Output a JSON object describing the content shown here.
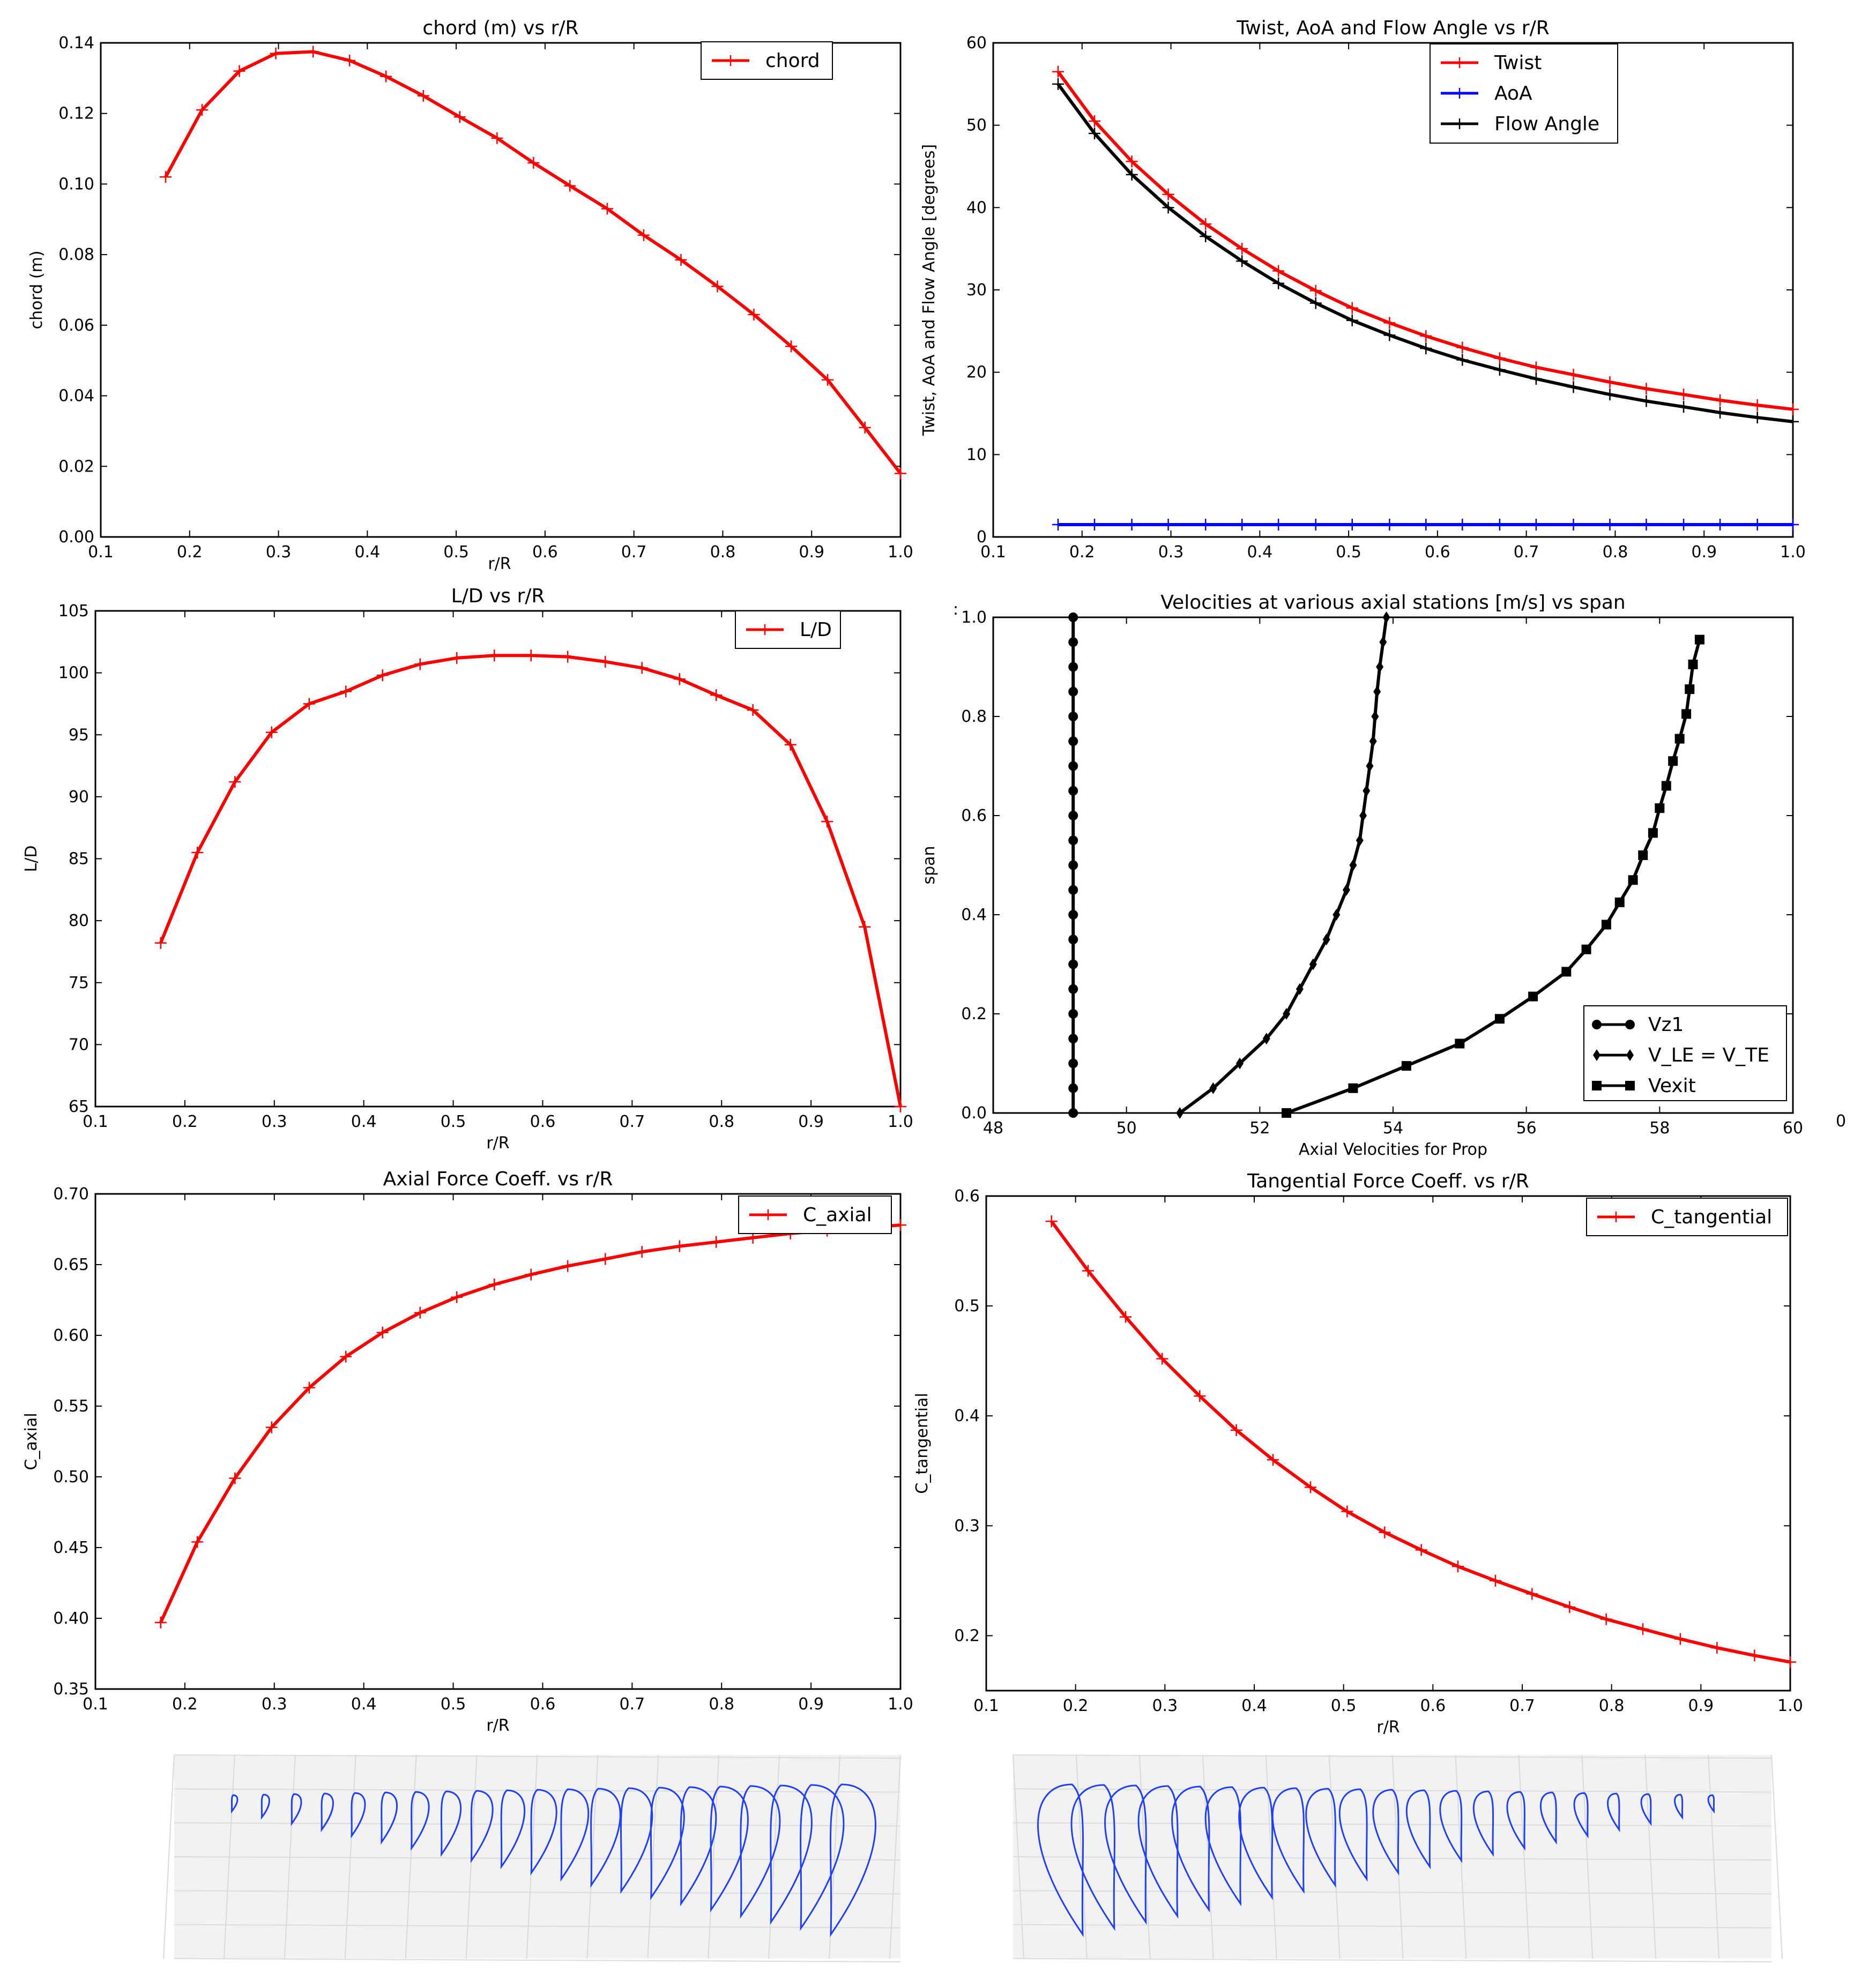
{
  "chart_data": [
    {
      "id": "chord",
      "type": "line",
      "title": "chord (m) vs r/R",
      "xlabel": "r/R",
      "ylabel": "chord (m)",
      "xlim": [
        0.1,
        1.0
      ],
      "ylim": [
        0.0,
        0.14
      ],
      "xticks": [
        "0.1",
        "0.2",
        "0.3",
        "0.4",
        "0.5",
        "0.6",
        "0.7",
        "0.8",
        "0.9",
        "1.0"
      ],
      "yticks": [
        "0.00",
        "0.02",
        "0.04",
        "0.06",
        "0.08",
        "0.10",
        "0.12",
        "0.14"
      ],
      "legend_position": "top-right",
      "series": [
        {
          "name": "chord",
          "color": "#ff0000",
          "marker": "plus",
          "x": [
            0.173,
            0.214,
            0.256,
            0.297,
            0.339,
            0.38,
            0.421,
            0.463,
            0.504,
            0.546,
            0.587,
            0.628,
            0.67,
            0.711,
            0.753,
            0.794,
            0.835,
            0.877,
            0.918,
            0.96,
            1.0
          ],
          "y": [
            0.102,
            0.121,
            0.132,
            0.137,
            0.1375,
            0.135,
            0.1305,
            0.125,
            0.119,
            0.113,
            0.106,
            0.0995,
            0.093,
            0.0855,
            0.0785,
            0.071,
            0.063,
            0.054,
            0.0445,
            0.031,
            0.018
          ]
        }
      ]
    },
    {
      "id": "twist",
      "type": "line",
      "title": "Twist, AoA and Flow Angle vs r/R",
      "xlabel": "",
      "ylabel": "Twist, AoA and Flow Angle [degrees]",
      "xlim": [
        0.1,
        1.0
      ],
      "ylim": [
        0,
        60
      ],
      "xticks": [
        "0.1",
        "0.2",
        "0.3",
        "0.4",
        "0.5",
        "0.6",
        "0.7",
        "0.8",
        "0.9",
        "1.0"
      ],
      "yticks": [
        "0",
        "10",
        "20",
        "30",
        "40",
        "50",
        "60"
      ],
      "legend_position": "top-center",
      "series": [
        {
          "name": "Twist",
          "color": "#ff0000",
          "marker": "plus",
          "x": [
            0.173,
            0.214,
            0.256,
            0.297,
            0.339,
            0.38,
            0.421,
            0.463,
            0.504,
            0.546,
            0.587,
            0.628,
            0.67,
            0.711,
            0.753,
            0.794,
            0.835,
            0.877,
            0.918,
            0.96,
            1.0
          ],
          "y": [
            56.5,
            50.5,
            45.6,
            41.6,
            38.0,
            35.0,
            32.3,
            29.9,
            27.8,
            26.0,
            24.4,
            23.0,
            21.7,
            20.6,
            19.7,
            18.8,
            18.0,
            17.3,
            16.6,
            16.0,
            15.5
          ]
        },
        {
          "name": "AoA",
          "color": "#0000ff",
          "marker": "plus",
          "x": [
            0.173,
            0.214,
            0.256,
            0.297,
            0.339,
            0.38,
            0.421,
            0.463,
            0.504,
            0.546,
            0.587,
            0.628,
            0.67,
            0.711,
            0.753,
            0.794,
            0.835,
            0.877,
            0.918,
            0.96,
            1.0
          ],
          "y": [
            1.5,
            1.5,
            1.5,
            1.5,
            1.5,
            1.5,
            1.5,
            1.5,
            1.5,
            1.5,
            1.5,
            1.5,
            1.5,
            1.5,
            1.5,
            1.5,
            1.5,
            1.5,
            1.5,
            1.5,
            1.5
          ]
        },
        {
          "name": "Flow Angle",
          "color": "#000000",
          "marker": "plus",
          "x": [
            0.173,
            0.214,
            0.256,
            0.297,
            0.339,
            0.38,
            0.421,
            0.463,
            0.504,
            0.546,
            0.587,
            0.628,
            0.67,
            0.711,
            0.753,
            0.794,
            0.835,
            0.877,
            0.918,
            0.96,
            1.0
          ],
          "y": [
            55.0,
            49.0,
            44.0,
            40.0,
            36.5,
            33.5,
            30.8,
            28.4,
            26.3,
            24.5,
            22.9,
            21.5,
            20.3,
            19.2,
            18.2,
            17.3,
            16.5,
            15.8,
            15.1,
            14.5,
            14.0
          ]
        }
      ]
    },
    {
      "id": "ld",
      "type": "line",
      "title": "L/D vs r/R",
      "xlabel": "r/R",
      "ylabel": "L/D",
      "xlim": [
        0.1,
        1.0
      ],
      "ylim": [
        65,
        105
      ],
      "xticks": [
        "0.1",
        "0.2",
        "0.3",
        "0.4",
        "0.5",
        "0.6",
        "0.7",
        "0.8",
        "0.9",
        "1.0"
      ],
      "yticks": [
        "65",
        "70",
        "75",
        "80",
        "85",
        "90",
        "95",
        "100",
        "105"
      ],
      "legend_position": "top-right",
      "series": [
        {
          "name": "L/D",
          "color": "#ff0000",
          "marker": "plus",
          "x": [
            0.173,
            0.214,
            0.256,
            0.297,
            0.339,
            0.38,
            0.421,
            0.463,
            0.504,
            0.546,
            0.587,
            0.628,
            0.67,
            0.711,
            0.753,
            0.794,
            0.835,
            0.877,
            0.918,
            0.96,
            1.0
          ],
          "y": [
            78.2,
            85.5,
            91.2,
            95.2,
            97.5,
            98.5,
            99.8,
            100.7,
            101.2,
            101.4,
            101.4,
            101.3,
            100.9,
            100.4,
            99.5,
            98.2,
            97.0,
            94.2,
            88.0,
            79.5,
            65.0
          ]
        }
      ]
    },
    {
      "id": "vel",
      "type": "line",
      "title": "Velocities at various axial stations [m/s] vs span",
      "xlabel": "Axial Velocities for Prop",
      "ylabel": "span",
      "xlim": [
        48,
        60
      ],
      "ylim": [
        0.0,
        1.0
      ],
      "xticks": [
        "48",
        "50",
        "52",
        "54",
        "56",
        "58",
        "60"
      ],
      "yticks": [
        "0.0",
        "0.2",
        "0.4",
        "0.6",
        "0.8",
        "1.0"
      ],
      "legend_position": "bottom-right",
      "stray_labels": [
        ":",
        "0"
      ],
      "series": [
        {
          "name": "Vz1",
          "color": "#000000",
          "marker": "circle",
          "x": [
            49.2,
            49.2,
            49.2,
            49.2,
            49.2,
            49.2,
            49.2,
            49.2,
            49.2,
            49.2,
            49.2,
            49.2,
            49.2,
            49.2,
            49.2,
            49.2,
            49.2,
            49.2,
            49.2,
            49.2,
            49.2
          ],
          "y": [
            0.0,
            0.05,
            0.1,
            0.15,
            0.2,
            0.25,
            0.3,
            0.35,
            0.4,
            0.45,
            0.5,
            0.55,
            0.6,
            0.65,
            0.7,
            0.75,
            0.8,
            0.85,
            0.9,
            0.95,
            1.0
          ]
        },
        {
          "name": "V_LE = V_TE",
          "color": "#000000",
          "marker": "diamond",
          "x": [
            50.8,
            51.3,
            51.7,
            52.1,
            52.4,
            52.6,
            52.8,
            53.0,
            53.15,
            53.3,
            53.4,
            53.5,
            53.55,
            53.6,
            53.65,
            53.7,
            53.73,
            53.76,
            53.8,
            53.85,
            53.9
          ],
          "y": [
            0.0,
            0.05,
            0.1,
            0.15,
            0.2,
            0.25,
            0.3,
            0.35,
            0.4,
            0.45,
            0.5,
            0.55,
            0.6,
            0.65,
            0.7,
            0.75,
            0.8,
            0.85,
            0.9,
            0.95,
            1.0
          ]
        },
        {
          "name": "Vexit",
          "color": "#000000",
          "marker": "square",
          "x": [
            52.4,
            53.4,
            54.2,
            55.0,
            55.6,
            56.1,
            56.6,
            56.9,
            57.2,
            57.4,
            57.6,
            57.75,
            57.9,
            58.0,
            58.1,
            58.2,
            58.3,
            58.4,
            58.45,
            58.5,
            58.6
          ],
          "y": [
            0.0,
            0.05,
            0.095,
            0.14,
            0.19,
            0.235,
            0.285,
            0.33,
            0.38,
            0.425,
            0.47,
            0.52,
            0.565,
            0.615,
            0.66,
            0.71,
            0.755,
            0.805,
            0.855,
            0.905,
            0.955
          ]
        }
      ]
    },
    {
      "id": "caxial",
      "type": "line",
      "title": "Axial Force Coeff. vs r/R",
      "xlabel": "r/R",
      "ylabel": "C_axial",
      "xlim": [
        0.1,
        1.0
      ],
      "ylim": [
        0.35,
        0.7
      ],
      "xticks": [
        "0.1",
        "0.2",
        "0.3",
        "0.4",
        "0.5",
        "0.6",
        "0.7",
        "0.8",
        "0.9",
        "1.0"
      ],
      "yticks": [
        "0.35",
        "0.40",
        "0.45",
        "0.50",
        "0.55",
        "0.60",
        "0.65",
        "0.70"
      ],
      "legend_position": "top-right",
      "series": [
        {
          "name": "C_axial",
          "color": "#ff0000",
          "marker": "plus",
          "x": [
            0.173,
            0.214,
            0.256,
            0.297,
            0.339,
            0.38,
            0.421,
            0.463,
            0.504,
            0.546,
            0.587,
            0.628,
            0.67,
            0.711,
            0.753,
            0.794,
            0.835,
            0.877,
            0.918,
            0.96,
            1.0
          ],
          "y": [
            0.397,
            0.454,
            0.499,
            0.535,
            0.563,
            0.585,
            0.602,
            0.616,
            0.627,
            0.636,
            0.643,
            0.649,
            0.654,
            0.659,
            0.663,
            0.666,
            0.669,
            0.672,
            0.674,
            0.676,
            0.678
          ]
        }
      ]
    },
    {
      "id": "ctang",
      "type": "line",
      "title": "Tangential Force Coeff. vs r/R",
      "xlabel": "r/R",
      "ylabel": "C_tangential",
      "xlim": [
        0.1,
        1.0
      ],
      "ylim": [
        0.15,
        0.6
      ],
      "xticks": [
        "0.1",
        "0.2",
        "0.3",
        "0.4",
        "0.5",
        "0.6",
        "0.7",
        "0.8",
        "0.9",
        "1.0"
      ],
      "yticks": [
        "0.2",
        "0.3",
        "0.4",
        "0.5",
        "0.6"
      ],
      "legend_position": "top-right",
      "series": [
        {
          "name": "C_tangential",
          "color": "#ff0000",
          "marker": "plus",
          "x": [
            0.173,
            0.214,
            0.256,
            0.297,
            0.339,
            0.38,
            0.421,
            0.463,
            0.504,
            0.546,
            0.587,
            0.628,
            0.67,
            0.711,
            0.753,
            0.794,
            0.835,
            0.877,
            0.918,
            0.96,
            1.0
          ],
          "y": [
            0.577,
            0.532,
            0.49,
            0.452,
            0.418,
            0.387,
            0.36,
            0.335,
            0.313,
            0.294,
            0.278,
            0.263,
            0.25,
            0.238,
            0.226,
            0.215,
            0.206,
            0.197,
            0.189,
            0.182,
            0.176
          ]
        }
      ]
    }
  ],
  "blade_views": [
    {
      "id": "blade_left",
      "section_count": 21,
      "line_color": "#1f3fff"
    },
    {
      "id": "blade_right",
      "section_count": 21,
      "line_color": "#1f3fff"
    }
  ]
}
